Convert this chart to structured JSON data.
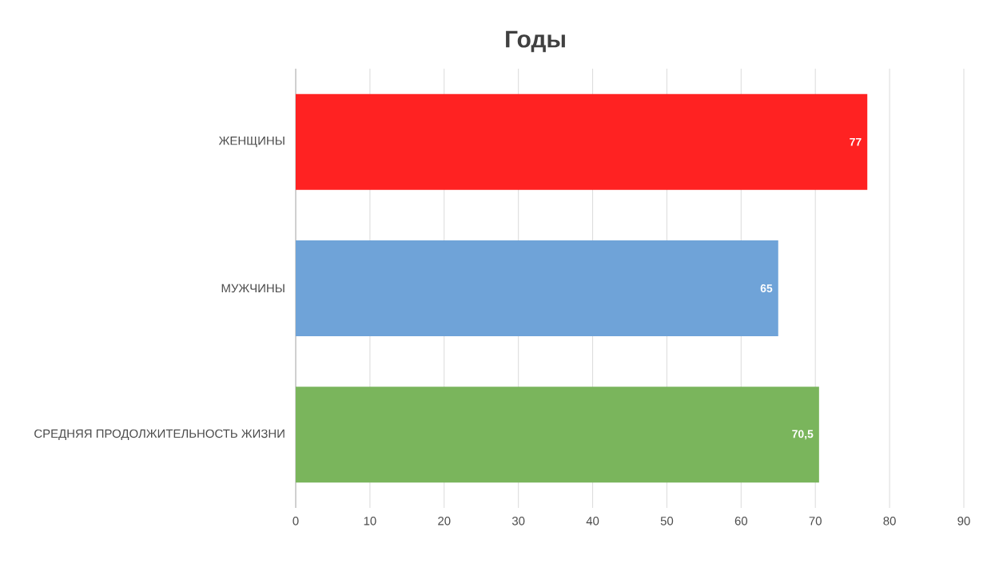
{
  "chart_data": {
    "type": "bar",
    "orientation": "horizontal",
    "title": "Годы",
    "categories": [
      "ЖЕНЩИНЫ",
      "МУЖЧИНЫ",
      "СРЕДНЯЯ ПРОДОЛЖИТЕЛЬНОСТЬ ЖИЗНИ"
    ],
    "values": [
      77,
      65,
      70.5
    ],
    "value_labels": [
      "77",
      "65",
      "70,5"
    ],
    "colors": [
      "#ff2222",
      "#6fa3d8",
      "#7ab55c"
    ],
    "xlim": [
      0,
      90
    ],
    "xticks": [
      0,
      10,
      20,
      30,
      40,
      50,
      60,
      70,
      80,
      90
    ],
    "grid": "x"
  }
}
